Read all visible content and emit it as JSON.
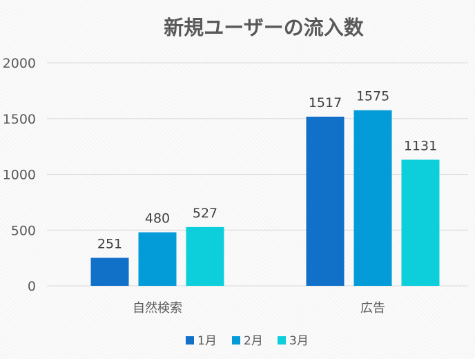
{
  "chart_data": {
    "type": "bar",
    "title": "新規ユーザーの流入数",
    "categories": [
      "自然検索",
      "広告"
    ],
    "series": [
      {
        "name": "1月",
        "values": [
          251,
          1517
        ],
        "color": "#1170c8"
      },
      {
        "name": "2月",
        "values": [
          480,
          1575
        ],
        "color": "#039bd8"
      },
      {
        "name": "3月",
        "values": [
          527,
          1131
        ],
        "color": "#0ccfdb"
      }
    ],
    "ylim": [
      0,
      2000
    ],
    "yticks": [
      0,
      500,
      1000,
      1500,
      2000
    ],
    "grid": true,
    "legend": "bottom"
  }
}
